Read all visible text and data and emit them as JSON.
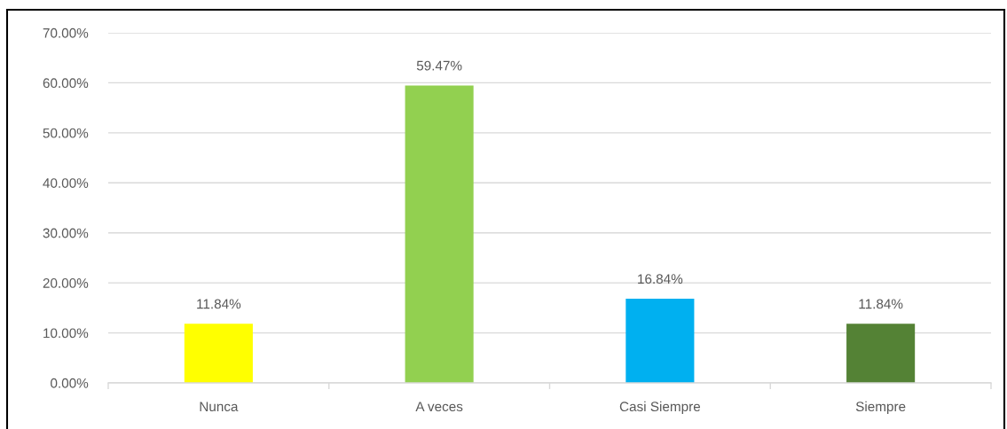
{
  "chart_data": {
    "type": "bar",
    "categories": [
      "Nunca",
      "A veces",
      "Casi Siempre",
      "Siempre"
    ],
    "values": [
      11.84,
      59.47,
      16.84,
      11.84
    ],
    "colors": [
      "#ffff00",
      "#92d050",
      "#00b0f0",
      "#548235"
    ],
    "value_labels": [
      "11.84%",
      "59.47%",
      "16.84%",
      "11.84%"
    ],
    "ylim": [
      0,
      70
    ],
    "yticks": [
      {
        "value": 0,
        "label": "0.00%"
      },
      {
        "value": 10,
        "label": "10.00%"
      },
      {
        "value": 20,
        "label": "20.00%"
      },
      {
        "value": 30,
        "label": "30.00%"
      },
      {
        "value": 40,
        "label": "40.00%"
      },
      {
        "value": 50,
        "label": "50.00%"
      },
      {
        "value": 60,
        "label": "60.00%"
      },
      {
        "value": 70,
        "label": "70.00%"
      }
    ],
    "grid": "y"
  }
}
